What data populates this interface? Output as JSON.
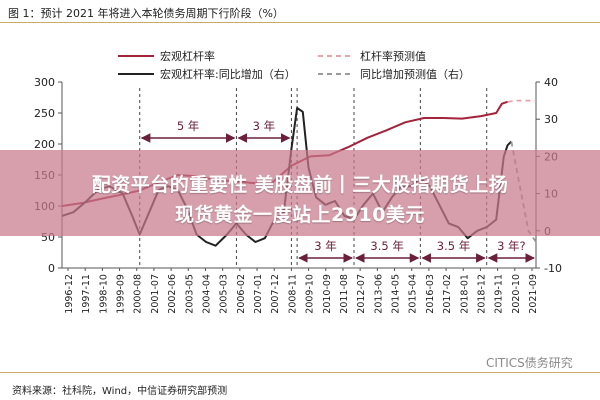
{
  "figure": {
    "title": "图 1：预计 2021 年将进入本轮债务周期下行阶段（%）",
    "source": "资料来源：社科院，Wind，中信证券研究部预测",
    "watermark": "CITICS债务研究"
  },
  "overlay": {
    "headline_line1": "配资平台的重要性 美股盘前丨三大股指期货上扬",
    "headline_line2": "现货黄金一度站上2910美元"
  },
  "colors": {
    "leverage": "#a3233a",
    "leverage_forecast": "#e7a3ad",
    "yoy": "#222222",
    "yoy_forecast": "#9a9a9a",
    "arrow": "#6b1f3a",
    "overlay": "#c8788c"
  },
  "chart_data": {
    "type": "line",
    "legend": [
      {
        "key": "lev",
        "label": "宏观杠杆率",
        "style": "solid",
        "color": "#a3233a"
      },
      {
        "key": "lev_fc",
        "label": "杠杆率预测值",
        "style": "dashed",
        "color": "#e7a3ad"
      },
      {
        "key": "yoy",
        "label": "宏观杠杆率:同比增加（右）",
        "style": "solid",
        "color": "#222222"
      },
      {
        "key": "yoy_fc",
        "label": "同比增加预测值（右）",
        "style": "dashed",
        "color": "#9a9a9a"
      }
    ],
    "x_ticks": [
      "1996-12",
      "1997-11",
      "1998-10",
      "1999-09",
      "2000-08",
      "2001-07",
      "2002-06",
      "2003-05",
      "2004-04",
      "2005-03",
      "2006-02",
      "2007-01",
      "2007-12",
      "2008-11",
      "2009-10",
      "2010-09",
      "2011-08",
      "2012-07",
      "2013-06",
      "2014-05",
      "2015-04",
      "2016-03",
      "2017-02",
      "2018-01",
      "2018-12",
      "2019-11",
      "2020-10",
      "2021-09"
    ],
    "x_range": [
      1996.9,
      2021.9
    ],
    "y_left": {
      "ticks": [
        0,
        50,
        100,
        150,
        200,
        250,
        300
      ],
      "range": [
        0,
        300
      ]
    },
    "y_right": {
      "ticks": [
        -10,
        0,
        10,
        20,
        30,
        40
      ],
      "range": [
        -10,
        40
      ]
    },
    "series": [
      {
        "key": "lev",
        "axis": "left",
        "points": [
          [
            1996.9,
            100
          ],
          [
            1998.0,
            105
          ],
          [
            1999.0,
            112
          ],
          [
            2000.0,
            118
          ],
          [
            2001.0,
            125
          ],
          [
            2002.0,
            138
          ],
          [
            2003.0,
            150
          ],
          [
            2004.0,
            148
          ],
          [
            2005.0,
            142
          ],
          [
            2006.0,
            140
          ],
          [
            2007.0,
            137
          ],
          [
            2008.0,
            138
          ],
          [
            2009.0,
            165
          ],
          [
            2010.0,
            180
          ],
          [
            2011.0,
            182
          ],
          [
            2012.0,
            195
          ],
          [
            2013.0,
            210
          ],
          [
            2014.0,
            222
          ],
          [
            2015.0,
            235
          ],
          [
            2016.0,
            242
          ],
          [
            2017.0,
            242
          ],
          [
            2018.0,
            241
          ],
          [
            2019.0,
            245
          ],
          [
            2019.8,
            250
          ],
          [
            2020.1,
            265
          ],
          [
            2020.4,
            268
          ]
        ]
      },
      {
        "key": "lev_fc",
        "axis": "left",
        "points": [
          [
            2020.4,
            268
          ],
          [
            2020.9,
            270
          ],
          [
            2021.4,
            270
          ],
          [
            2021.9,
            270
          ]
        ]
      },
      {
        "key": "yoy",
        "axis": "right",
        "points": [
          [
            1996.9,
            4
          ],
          [
            1997.5,
            5
          ],
          [
            1998.2,
            8
          ],
          [
            1998.8,
            11
          ],
          [
            1999.4,
            12
          ],
          [
            2000.1,
            10
          ],
          [
            2000.6,
            4
          ],
          [
            2001.0,
            -1
          ],
          [
            2001.5,
            5
          ],
          [
            2002.0,
            11
          ],
          [
            2002.5,
            12
          ],
          [
            2003.0,
            11
          ],
          [
            2003.5,
            6
          ],
          [
            2004.0,
            -1
          ],
          [
            2004.5,
            -3
          ],
          [
            2005.0,
            -4
          ],
          [
            2005.6,
            -1
          ],
          [
            2006.1,
            2
          ],
          [
            2006.6,
            -1
          ],
          [
            2007.1,
            -3
          ],
          [
            2007.6,
            -2
          ],
          [
            2008.1,
            3
          ],
          [
            2008.6,
            5
          ],
          [
            2009.0,
            22
          ],
          [
            2009.3,
            33
          ],
          [
            2009.6,
            32
          ],
          [
            2009.9,
            17
          ],
          [
            2010.3,
            9
          ],
          [
            2010.8,
            7
          ],
          [
            2011.3,
            8
          ],
          [
            2011.8,
            4
          ],
          [
            2012.3,
            3
          ],
          [
            2012.8,
            7
          ],
          [
            2013.3,
            10
          ],
          [
            2013.8,
            5
          ],
          [
            2014.3,
            9
          ],
          [
            2014.8,
            12
          ],
          [
            2015.3,
            12
          ],
          [
            2015.8,
            14
          ],
          [
            2016.3,
            12
          ],
          [
            2016.8,
            7
          ],
          [
            2017.3,
            2
          ],
          [
            2017.8,
            1
          ],
          [
            2018.3,
            -2
          ],
          [
            2018.8,
            0
          ],
          [
            2019.3,
            1
          ],
          [
            2019.8,
            3
          ],
          [
            2020.2,
            20
          ],
          [
            2020.4,
            23
          ],
          [
            2020.6,
            24
          ]
        ]
      },
      {
        "key": "yoy_fc",
        "axis": "right",
        "points": [
          [
            2020.6,
            24
          ],
          [
            2020.9,
            16
          ],
          [
            2021.2,
            8
          ],
          [
            2021.5,
            0
          ],
          [
            2021.9,
            -3
          ]
        ]
      }
    ],
    "annotations": [
      {
        "label": "5 年",
        "row": "upper",
        "from": 2001.0,
        "to": 2006.1
      },
      {
        "label": "3 年",
        "row": "upper",
        "from": 2006.1,
        "to": 2009.0
      },
      {
        "label": "3 年",
        "row": "lower",
        "from": 2009.3,
        "to": 2012.3
      },
      {
        "label": "3.5 年",
        "row": "lower",
        "from": 2012.3,
        "to": 2015.8
      },
      {
        "label": "3.5 年",
        "row": "lower",
        "from": 2015.8,
        "to": 2019.3
      },
      {
        "label": "3 年?",
        "row": "lower",
        "from": 2019.3,
        "to": 2021.9
      }
    ],
    "dividers": [
      2001.0,
      2006.1,
      2009.0,
      2009.3,
      2012.3,
      2015.8,
      2019.3
    ]
  }
}
